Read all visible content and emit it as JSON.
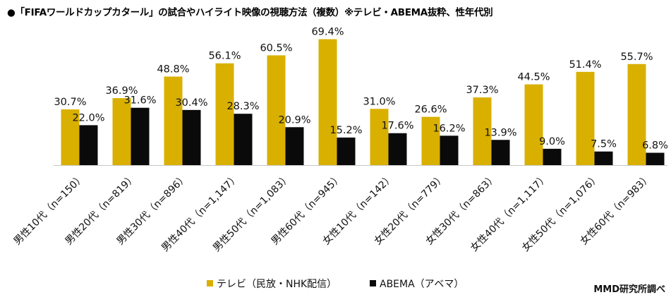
{
  "title": "●「FIFAワールドカップカタール」の試合やハイライト映像の視聴方法（複数）※テレビ・ABEMA抜粋、性年代別",
  "source": "MMD研究所調べ",
  "colors": {
    "tv": "#d9b000",
    "abema": "#0a0a0a",
    "axis": "#c8c8c8"
  },
  "chart_data": {
    "type": "bar",
    "title": "「FIFAワールドカップカタール」の試合やハイライト映像の視聴方法（複数）※テレビ・ABEMA抜粋、性年代別",
    "categories": [
      "男性10代（n=150）",
      "男性20代（n=819）",
      "男性30代（n=896）",
      "男性40代（n=1,147）",
      "男性50代（n=1,083）",
      "男性60代（n=945）",
      "女性10代（n=142）",
      "女性20代（n=779）",
      "女性30代（n=863）",
      "女性40代（n=1,117）",
      "女性50代（n=1,076）",
      "女性60代（n=983）"
    ],
    "series": [
      {
        "name": "テレビ（民放・NHK配信）",
        "values": [
          30.7,
          36.9,
          48.8,
          56.1,
          60.5,
          69.4,
          31.0,
          26.6,
          37.3,
          44.5,
          51.4,
          55.7
        ]
      },
      {
        "name": "ABEMA（アベマ）",
        "values": [
          22.0,
          31.6,
          30.4,
          28.3,
          20.9,
          15.2,
          17.6,
          16.2,
          13.9,
          9.0,
          7.5,
          6.8
        ]
      }
    ],
    "value_suffix": "%",
    "ylim": [
      0,
      70
    ],
    "xlabel": "",
    "ylabel": "",
    "legend_position": "bottom-center",
    "grid": false
  }
}
